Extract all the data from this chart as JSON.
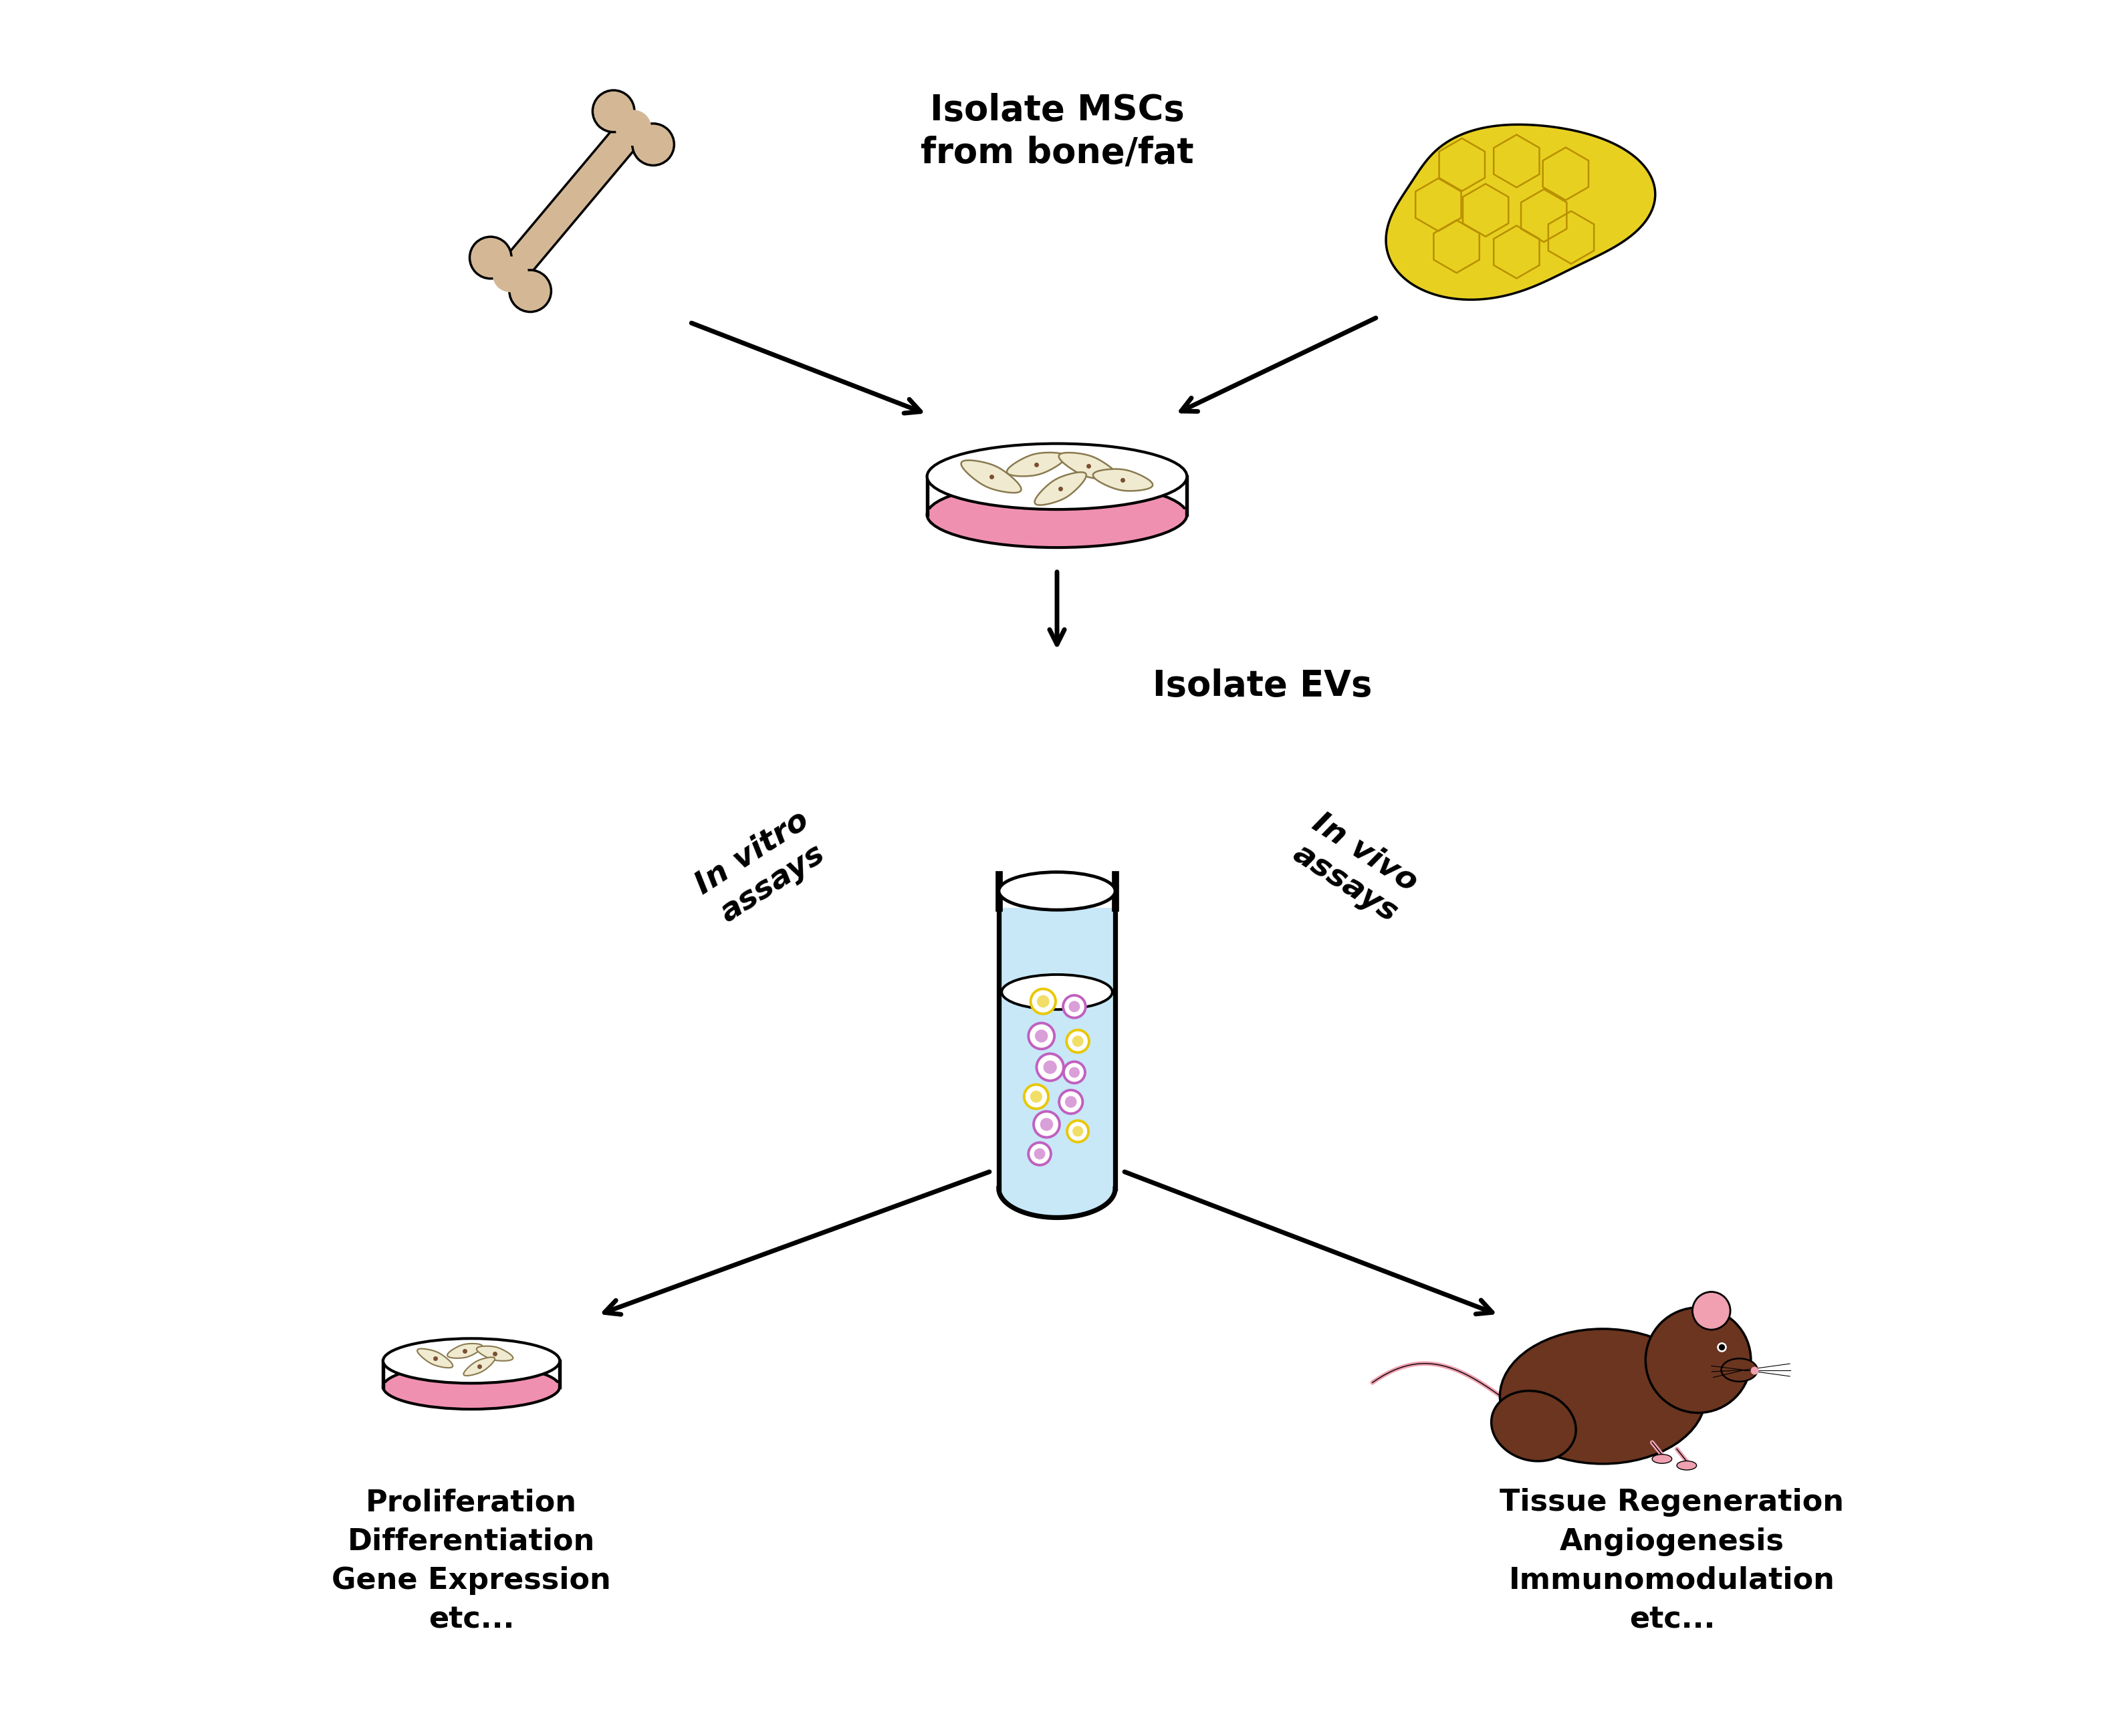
{
  "bg_color": "#ffffff",
  "text_isolate_mscs": "Isolate MSCs\nfrom bone/fat",
  "text_isolate_evs": "Isolate EVs",
  "text_in_vitro": "In vitro\nassays",
  "text_in_vivo": "In vivo\nassays",
  "text_left": "Proliferation\nDifferentiation\nGene Expression\netc...",
  "text_right": "Tissue Regeneration\nAngiogenesis\nImmunomodulation\netc...",
  "bone_color": "#d4b896",
  "bone_edge": "#000000",
  "fat_fill": "#e8d020",
  "fat_edge": "#000000",
  "fat_line": "#b89000",
  "petri_pink": "#f090b0",
  "petri_pink2": "#f8c0d0",
  "cell_fill": "#f0ead0",
  "cell_edge": "#8a7a50",
  "nucleus_color": "#7a5030",
  "tube_fill": "#c8e8f8",
  "tube_edge": "#000000",
  "vesicle_purple": "#c060c0",
  "vesicle_yellow": "#e8c800",
  "mouse_brown": "#6b3520",
  "mouse_pink": "#f0a0b0",
  "mouse_white": "#ffffff",
  "font_color": "#000000",
  "font_size_title": 38,
  "font_size_label": 34,
  "font_size_text": 32
}
